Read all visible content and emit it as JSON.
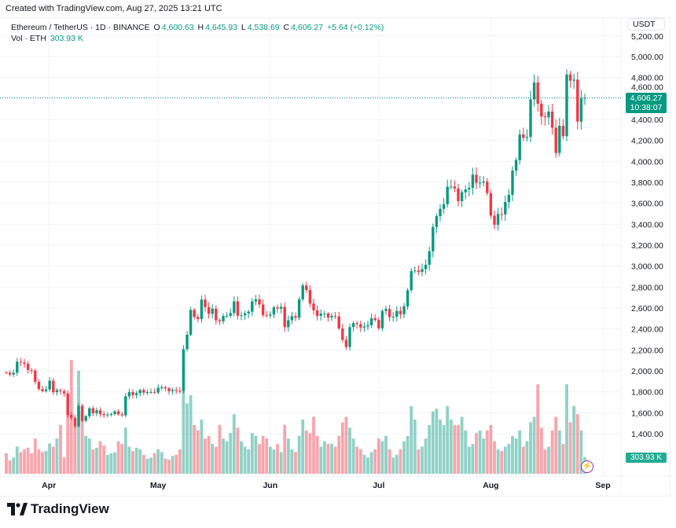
{
  "header": {
    "created": "Created with TradingView.com, Aug 27, 2025 13:21 UTC",
    "symbol": "Ethereum / TetherUS · 1D · BINANCE",
    "o_label": "O",
    "o": "4,600.63",
    "h_label": "H",
    "h": "4,645.93",
    "l_label": "L",
    "l": "4,538.69",
    "c_label": "C",
    "c": "4,606.27",
    "change": "+5.64 (+0.12%)",
    "vol_label": "Vol · ETH",
    "vol": "303.93 K"
  },
  "axis": {
    "currency": "USDT",
    "price_label": "4,606.27",
    "countdown": "10:38:07",
    "volume_label": "303.93 K"
  },
  "logo": "TradingView",
  "colors": {
    "up": "#089981",
    "down": "#F23645",
    "alert": "#9c27b0"
  },
  "chart_data": {
    "type": "candlestick",
    "title": "Ethereum / TetherUS · 1D · BINANCE",
    "start_date": "2025-03-20",
    "end_date": "2025-08-27",
    "first_open": 1985,
    "close": [
      1983,
      1966,
      1982,
      2087,
      2080,
      2068,
      2009,
      2003,
      1896,
      1827,
      1807,
      1823,
      1906,
      1796,
      1817,
      1807,
      1785,
      1580,
      1553,
      1472,
      1667,
      1524,
      1568,
      1643,
      1596,
      1624,
      1588,
      1578,
      1583,
      1588,
      1613,
      1585,
      1576,
      1757,
      1798,
      1769,
      1787,
      1818,
      1793,
      1798,
      1799,
      1793,
      1839,
      1843,
      1833,
      1806,
      1817,
      1811,
      1810,
      2207,
      2346,
      2583,
      2515,
      2495,
      2680,
      2609,
      2545,
      2594,
      2483,
      2473,
      2525,
      2526,
      2552,
      2664,
      2526,
      2531,
      2550,
      2565,
      2663,
      2683,
      2634,
      2532,
      2528,
      2538,
      2606,
      2594,
      2611,
      2418,
      2484,
      2523,
      2507,
      2683,
      2816,
      2772,
      2643,
      2578,
      2525,
      2547,
      2547,
      2510,
      2525,
      2520,
      2405,
      2296,
      2228,
      2418,
      2456,
      2447,
      2414,
      2424,
      2436,
      2503,
      2486,
      2407,
      2572,
      2591,
      2514,
      2517,
      2572,
      2541,
      2616,
      2770,
      2953,
      2958,
      2945,
      2971,
      3013,
      3141,
      3374,
      3477,
      3547,
      3591,
      3758,
      3760,
      3741,
      3620,
      3705,
      3732,
      3747,
      3873,
      3795,
      3798,
      3808,
      3697,
      3482,
      3394,
      3498,
      3494,
      3612,
      3681,
      3912,
      4012,
      4257,
      4224,
      4233,
      4592,
      4753,
      4551,
      4428,
      4420,
      4475,
      4320,
      4080,
      4340,
      4240,
      4830,
      4770,
      4780,
      4380,
      4600.63,
      4606.27
    ],
    "last": {
      "open": 4600.63,
      "high": 4645.93,
      "low": 4538.69,
      "close": 4606.27
    },
    "volume_k": [
      380,
      250,
      300,
      500,
      400,
      450,
      480,
      380,
      650,
      450,
      400,
      420,
      560,
      500,
      650,
      900,
      300,
      1150,
      2100,
      900,
      1900,
      1100,
      700,
      650,
      450,
      480,
      600,
      520,
      350,
      380,
      400,
      600,
      550,
      850,
      500,
      420,
      480,
      450,
      350,
      280,
      300,
      380,
      450,
      400,
      280,
      260,
      330,
      350,
      450,
      1600,
      1300,
      1450,
      900,
      800,
      1000,
      650,
      700,
      550,
      500,
      900,
      650,
      600,
      750,
      1100,
      850,
      600,
      500,
      450,
      750,
      700,
      550,
      700,
      650,
      500,
      450,
      550,
      400,
      900,
      650,
      450,
      400,
      700,
      1000,
      800,
      750,
      1050,
      700,
      500,
      600,
      550,
      550,
      500,
      700,
      950,
      1050,
      850,
      650,
      500,
      450,
      350,
      300,
      400,
      450,
      650,
      600,
      700,
      450,
      300,
      350,
      450,
      600,
      700,
      1250,
      1000,
      450,
      500,
      650,
      900,
      1150,
      1200,
      1000,
      900,
      1250,
      1000,
      900,
      900,
      1050,
      800,
      500,
      550,
      750,
      800,
      650,
      800,
      900,
      600,
      450,
      420,
      500,
      550,
      700,
      650,
      800,
      500,
      600,
      950,
      1050,
      1650,
      850,
      450,
      500,
      800,
      1050,
      800,
      550,
      1650,
      950,
      1250,
      1100,
      800,
      303.93
    ],
    "y_ticks": [
      "5,200.00",
      "5,000.00",
      "4,800.00",
      "4,600.00",
      "4,400.00",
      "4,200.00",
      "4,000.00",
      "3,800.00",
      "3,600.00",
      "3,400.00",
      "3,200.00",
      "3,000.00",
      "2,800.00",
      "2,600.00",
      "2,400.00",
      "2,200.00",
      "2,000.00",
      "1,800.00",
      "1,600.00",
      "1,400.00"
    ],
    "y_tick_values": [
      5200,
      5000,
      4800,
      4600,
      4400,
      4200,
      4000,
      3800,
      3600,
      3400,
      3200,
      3000,
      2800,
      2600,
      2400,
      2200,
      2000,
      1800,
      1600,
      1400
    ],
    "x_ticks": [
      "Apr",
      "May",
      "Jun",
      "Jul",
      "Aug",
      "Sep"
    ],
    "x_tick_day_index": [
      12,
      42,
      73,
      103,
      134,
      165
    ],
    "ylim": [
      1250,
      5250
    ],
    "current_price": 4606.27
  }
}
